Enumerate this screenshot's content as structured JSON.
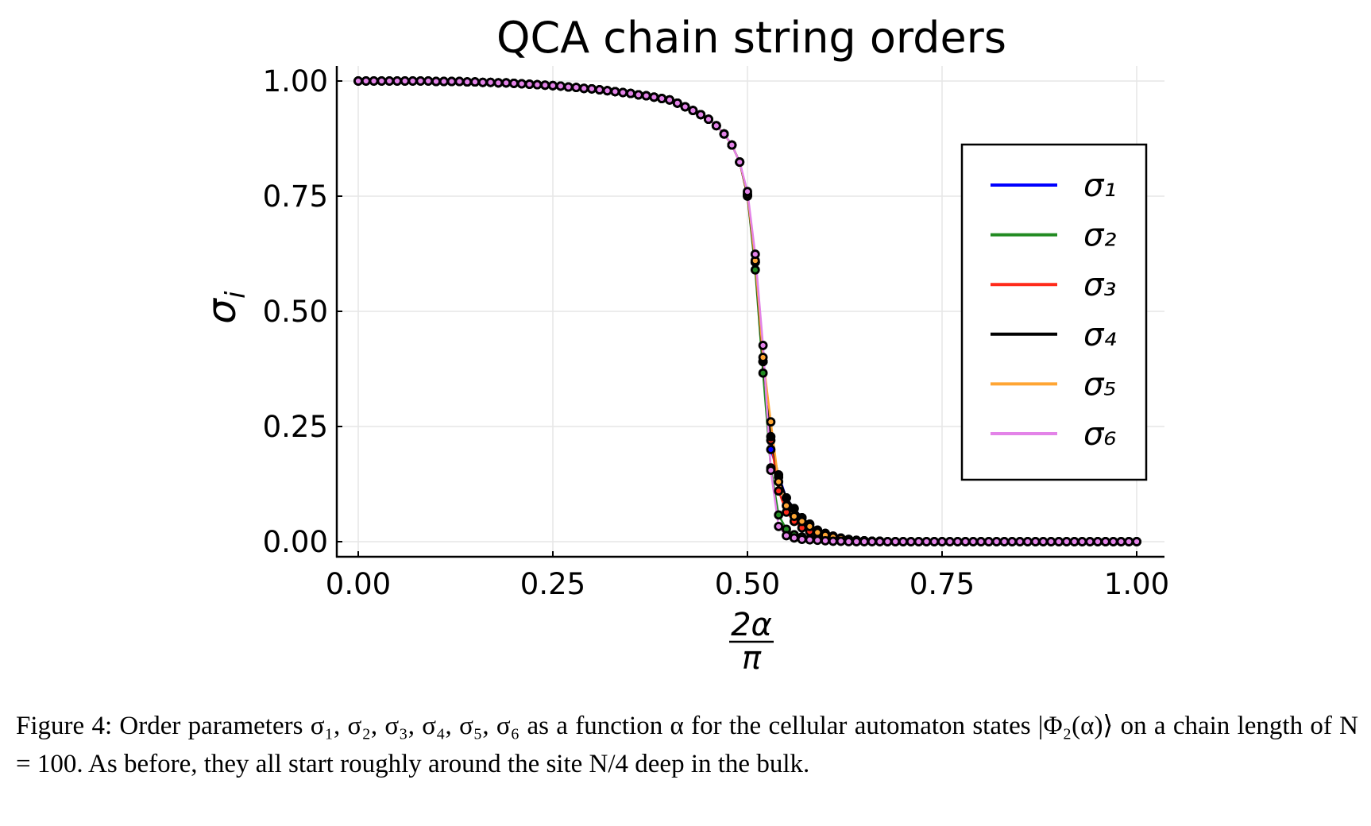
{
  "chart_data": {
    "type": "line",
    "title": "QCA chain string orders",
    "xlabel": {
      "numerator": "2α",
      "denominator": "π"
    },
    "ylabel": {
      "symbol": "σ",
      "subscript": "i"
    },
    "xlim": [
      0,
      1
    ],
    "ylim": [
      0,
      1
    ],
    "xticks": [
      "0.00",
      "0.25",
      "0.50",
      "0.75",
      "1.00"
    ],
    "yticks": [
      "0.00",
      "0.25",
      "0.50",
      "0.75",
      "1.00"
    ],
    "grid": true,
    "legend_position": "right",
    "markers": "circle, black edge",
    "x": [
      0,
      0.01,
      0.02,
      0.03,
      0.04,
      0.05,
      0.06,
      0.07,
      0.08,
      0.09,
      0.1,
      0.11,
      0.12,
      0.13,
      0.14,
      0.15,
      0.16,
      0.17,
      0.18,
      0.19,
      0.2,
      0.21,
      0.22,
      0.23,
      0.24,
      0.25,
      0.26,
      0.27,
      0.28,
      0.29,
      0.3,
      0.31,
      0.32,
      0.33,
      0.34,
      0.35,
      0.36,
      0.37,
      0.38,
      0.39,
      0.4,
      0.41,
      0.42,
      0.43,
      0.44,
      0.45,
      0.46,
      0.47,
      0.48,
      0.49,
      0.5,
      0.51,
      0.52,
      0.53,
      0.54,
      0.55,
      0.56,
      0.57,
      0.58,
      0.59,
      0.6,
      0.61,
      0.62,
      0.63,
      0.64,
      0.65,
      0.66,
      0.67,
      0.68,
      0.69,
      0.7,
      0.71,
      0.72,
      0.73,
      0.74,
      0.75,
      0.76,
      0.77,
      0.78,
      0.79,
      0.8,
      0.81,
      0.82,
      0.83,
      0.84,
      0.85,
      0.86,
      0.87,
      0.88,
      0.89,
      0.9,
      0.91,
      0.92,
      0.93,
      0.94,
      0.95,
      0.96,
      0.97,
      0.98,
      0.99,
      1
    ],
    "series": [
      {
        "name": "σ₁",
        "color": "#0000FF",
        "values": [
          1,
          1,
          1,
          1,
          1,
          1,
          1,
          1,
          1,
          1,
          0.999,
          0.999,
          0.999,
          0.999,
          0.998,
          0.998,
          0.997,
          0.997,
          0.996,
          0.996,
          0.995,
          0.994,
          0.993,
          0.992,
          0.991,
          0.99,
          0.989,
          0.987,
          0.986,
          0.984,
          0.983,
          0.981,
          0.979,
          0.977,
          0.975,
          0.973,
          0.97,
          0.968,
          0.965,
          0.962,
          0.959,
          0.952,
          0.944,
          0.936,
          0.927,
          0.917,
          0.903,
          0.885,
          0.861,
          0.824,
          0.752,
          0.607,
          0.391,
          0.2,
          0.145,
          0.095,
          0.072,
          0.052,
          0.038,
          0.025,
          0.018,
          0.012,
          0.008,
          0.005,
          0.003,
          0.002,
          0.001,
          0.001,
          0,
          0,
          0,
          0,
          0,
          0,
          0,
          0,
          0,
          0,
          0,
          0,
          0,
          0,
          0,
          0,
          0,
          0,
          0,
          0,
          0,
          0,
          0,
          0,
          0,
          0,
          0,
          0,
          0,
          0,
          0,
          0,
          0
        ]
      },
      {
        "name": "σ₂",
        "color": "#228B22",
        "values": [
          1,
          1,
          1,
          1,
          1,
          1,
          1,
          1,
          1,
          1,
          0.999,
          0.999,
          0.999,
          0.999,
          0.998,
          0.998,
          0.997,
          0.997,
          0.996,
          0.996,
          0.995,
          0.994,
          0.993,
          0.992,
          0.991,
          0.99,
          0.989,
          0.987,
          0.986,
          0.984,
          0.983,
          0.981,
          0.979,
          0.977,
          0.975,
          0.973,
          0.97,
          0.968,
          0.965,
          0.962,
          0.959,
          0.952,
          0.944,
          0.936,
          0.927,
          0.917,
          0.903,
          0.885,
          0.861,
          0.824,
          0.75,
          0.59,
          0.366,
          0.16,
          0.058,
          0.027,
          0.015,
          0.01,
          0.006,
          0.004,
          0.003,
          0.002,
          0.001,
          0.001,
          0,
          0,
          0,
          0,
          0,
          0,
          0,
          0,
          0,
          0,
          0,
          0,
          0,
          0,
          0,
          0,
          0,
          0,
          0,
          0,
          0,
          0,
          0,
          0,
          0,
          0,
          0,
          0,
          0,
          0,
          0,
          0,
          0,
          0,
          0,
          0,
          0
        ]
      },
      {
        "name": "σ₃",
        "color": "#FF2A1A",
        "values": [
          1,
          1,
          1,
          1,
          1,
          1,
          1,
          1,
          1,
          1,
          0.999,
          0.999,
          0.999,
          0.999,
          0.998,
          0.998,
          0.997,
          0.997,
          0.996,
          0.996,
          0.995,
          0.994,
          0.993,
          0.992,
          0.991,
          0.99,
          0.989,
          0.987,
          0.986,
          0.984,
          0.983,
          0.981,
          0.979,
          0.977,
          0.975,
          0.973,
          0.97,
          0.968,
          0.965,
          0.962,
          0.959,
          0.952,
          0.944,
          0.936,
          0.927,
          0.917,
          0.903,
          0.885,
          0.861,
          0.824,
          0.752,
          0.607,
          0.391,
          0.22,
          0.11,
          0.064,
          0.044,
          0.03,
          0.022,
          0.014,
          0.01,
          0.007,
          0.005,
          0.003,
          0.002,
          0.001,
          0.001,
          0,
          0,
          0,
          0,
          0,
          0,
          0,
          0,
          0,
          0,
          0,
          0,
          0,
          0,
          0,
          0,
          0,
          0,
          0,
          0,
          0,
          0,
          0,
          0,
          0,
          0,
          0,
          0,
          0,
          0,
          0,
          0,
          0,
          0
        ]
      },
      {
        "name": "σ₄",
        "color": "#000000",
        "values": [
          1,
          1,
          1,
          1,
          1,
          1,
          1,
          1,
          1,
          1,
          0.999,
          0.999,
          0.999,
          0.999,
          0.998,
          0.998,
          0.997,
          0.997,
          0.996,
          0.996,
          0.995,
          0.994,
          0.993,
          0.992,
          0.991,
          0.99,
          0.989,
          0.987,
          0.986,
          0.984,
          0.983,
          0.981,
          0.979,
          0.977,
          0.975,
          0.973,
          0.97,
          0.968,
          0.965,
          0.962,
          0.959,
          0.952,
          0.944,
          0.936,
          0.927,
          0.917,
          0.903,
          0.885,
          0.861,
          0.824,
          0.752,
          0.607,
          0.391,
          0.228,
          0.14,
          0.095,
          0.072,
          0.052,
          0.038,
          0.025,
          0.018,
          0.012,
          0.008,
          0.005,
          0.003,
          0.002,
          0.001,
          0.001,
          0,
          0,
          0,
          0,
          0,
          0,
          0,
          0,
          0,
          0,
          0,
          0,
          0,
          0,
          0,
          0,
          0,
          0,
          0,
          0,
          0,
          0,
          0,
          0,
          0,
          0,
          0,
          0,
          0,
          0,
          0,
          0,
          0
        ]
      },
      {
        "name": "σ₅",
        "color": "#FFA533",
        "values": [
          1,
          1,
          1,
          1,
          1,
          1,
          1,
          1,
          1,
          1,
          0.999,
          0.999,
          0.999,
          0.999,
          0.998,
          0.998,
          0.997,
          0.997,
          0.996,
          0.996,
          0.995,
          0.994,
          0.993,
          0.992,
          0.991,
          0.99,
          0.989,
          0.987,
          0.986,
          0.984,
          0.983,
          0.981,
          0.979,
          0.977,
          0.975,
          0.973,
          0.97,
          0.968,
          0.965,
          0.962,
          0.959,
          0.952,
          0.944,
          0.936,
          0.927,
          0.917,
          0.903,
          0.885,
          0.861,
          0.824,
          0.755,
          0.61,
          0.4,
          0.26,
          0.13,
          0.078,
          0.055,
          0.044,
          0.033,
          0.02,
          0.014,
          0.01,
          0.007,
          0.004,
          0.003,
          0.002,
          0.001,
          0.001,
          0,
          0,
          0,
          0,
          0,
          0,
          0,
          0,
          0,
          0,
          0,
          0,
          0,
          0,
          0,
          0,
          0,
          0,
          0,
          0,
          0,
          0,
          0,
          0,
          0,
          0,
          0,
          0,
          0,
          0,
          0,
          0,
          0
        ]
      },
      {
        "name": "σ₆",
        "color": "#E383E8",
        "values": [
          1,
          1,
          1,
          1,
          1,
          1,
          1,
          1,
          1,
          1,
          0.999,
          0.999,
          0.999,
          0.999,
          0.998,
          0.998,
          0.997,
          0.997,
          0.996,
          0.996,
          0.995,
          0.994,
          0.993,
          0.992,
          0.991,
          0.99,
          0.989,
          0.987,
          0.986,
          0.984,
          0.983,
          0.981,
          0.979,
          0.977,
          0.975,
          0.973,
          0.97,
          0.968,
          0.965,
          0.962,
          0.959,
          0.952,
          0.944,
          0.936,
          0.927,
          0.917,
          0.903,
          0.885,
          0.861,
          0.824,
          0.76,
          0.624,
          0.426,
          0.155,
          0.033,
          0.013,
          0.008,
          0.005,
          0.004,
          0.003,
          0.002,
          0.001,
          0.001,
          0,
          0,
          0,
          0,
          0,
          0,
          0,
          0,
          0,
          0,
          0,
          0,
          0,
          0,
          0,
          0,
          0,
          0,
          0,
          0,
          0,
          0,
          0,
          0,
          0,
          0,
          0,
          0,
          0,
          0,
          0,
          0,
          0,
          0,
          0,
          0,
          0,
          0
        ]
      }
    ]
  },
  "caption": "Figure 4:   Order parameters σ₁, σ₂, σ₃, σ₄, σ₅, σ₆ as a function α for the cellular automaton states |Φ₂(α)⟩ on a chain length of N = 100. As before, they all start roughly around the site N/4 deep in the bulk."
}
